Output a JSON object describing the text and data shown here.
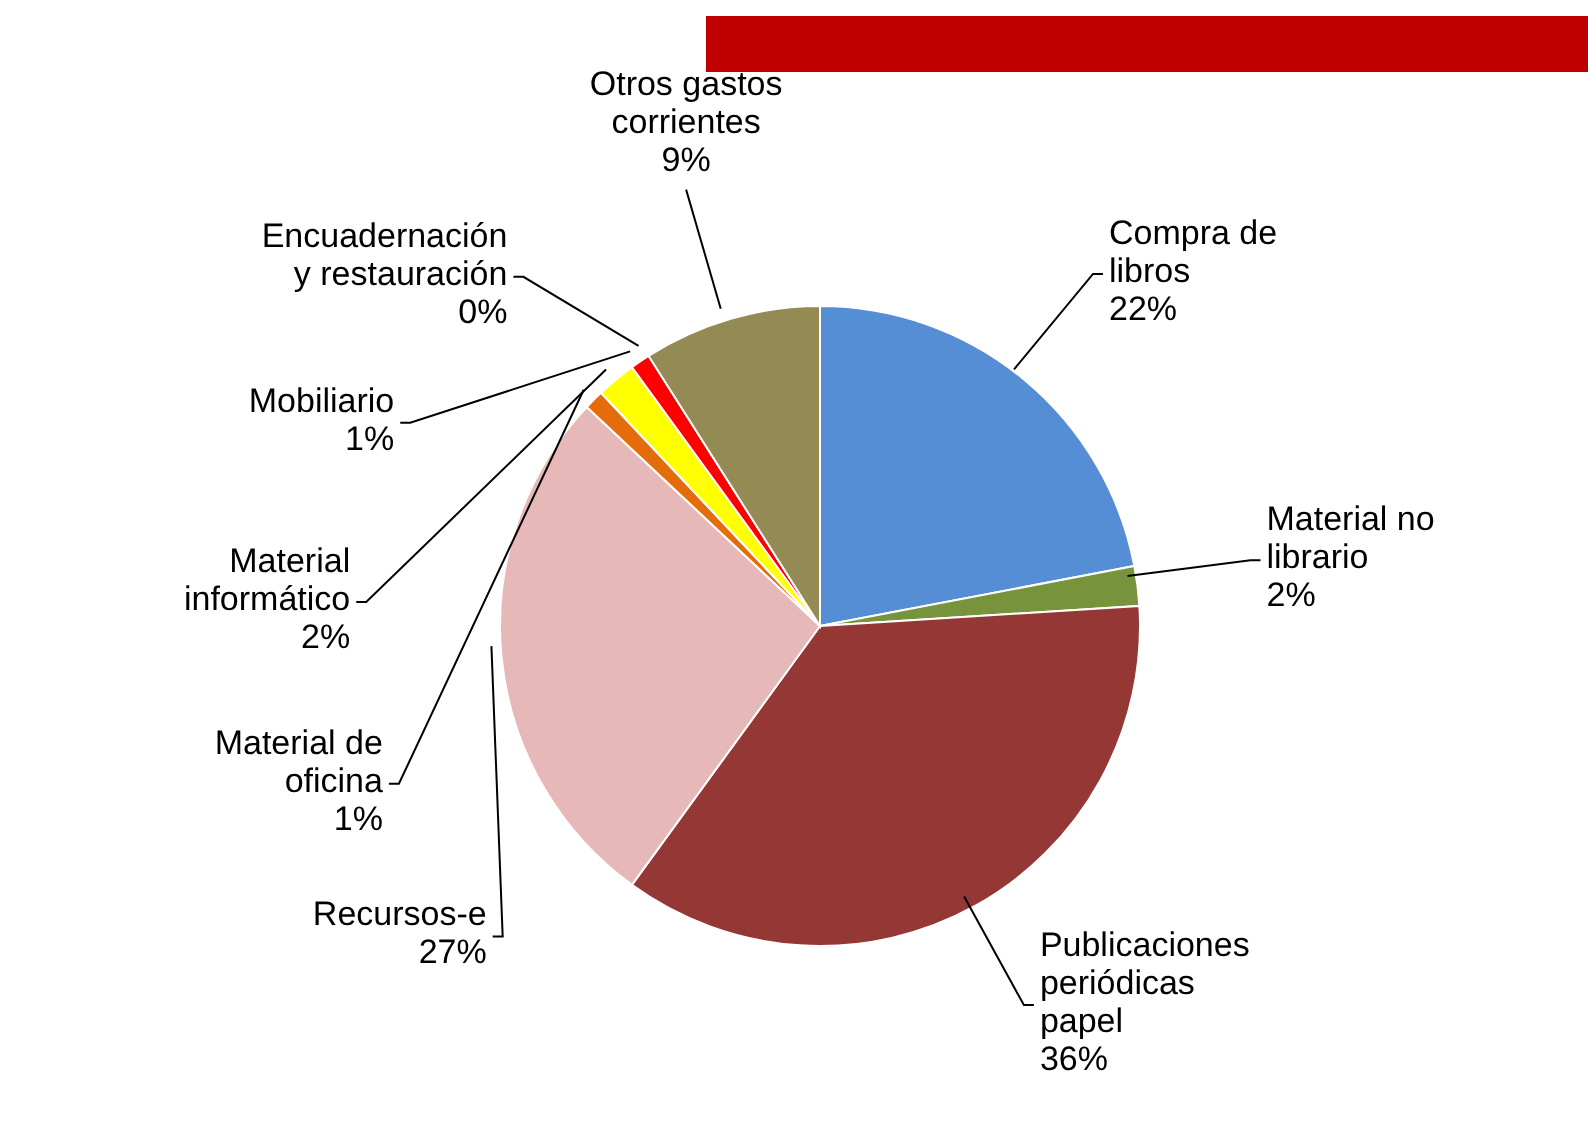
{
  "chart_data": {
    "type": "pie",
    "categories": [
      "Compra de libros",
      "Material no librario",
      "Publicaciones periódicas papel",
      "Recursos-e",
      "Material de oficina",
      "Material informático",
      "Mobiliario",
      "Encuadernación y restauración",
      "Otros gastos corrientes"
    ],
    "values": [
      22,
      2,
      36,
      27,
      1,
      2,
      1,
      0,
      9
    ],
    "value_labels": [
      "22%",
      "2%",
      "36%",
      "27%",
      "1%",
      "2%",
      "1%",
      "0%",
      "9%"
    ],
    "colors": [
      "#558ed5",
      "#77933c",
      "#953735",
      "#e6b9b8",
      "#e46c0a",
      "#ffff00",
      "#ff0000",
      "#f2a0a0",
      "#948a54"
    ],
    "legend": false
  }
}
